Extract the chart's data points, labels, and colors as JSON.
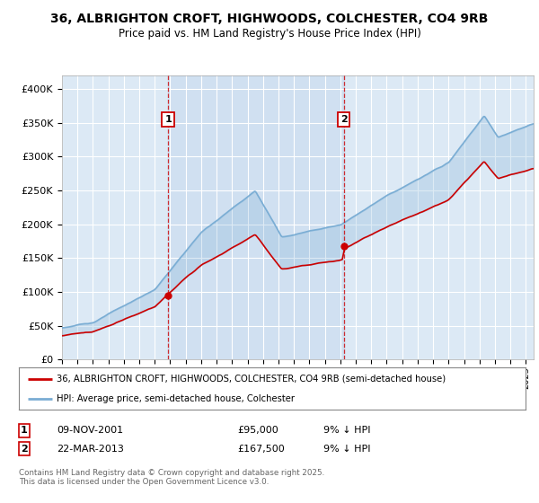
{
  "title": "36, ALBRIGHTON CROFT, HIGHWOODS, COLCHESTER, CO4 9RB",
  "subtitle": "Price paid vs. HM Land Registry's House Price Index (HPI)",
  "ylim": [
    0,
    420000
  ],
  "xlim_start": 1995,
  "xlim_end": 2025.5,
  "fig_bg": "#ffffff",
  "plot_bg": "#dce9f5",
  "grid_color": "#ffffff",
  "shade_color": "#c5d8ee",
  "line1_color": "#cc0000",
  "line2_color": "#7aadd4",
  "t1x": 2001.86,
  "t1y": 95000,
  "t2x": 2013.22,
  "t2y": 167500,
  "legend1": "36, ALBRIGHTON CROFT, HIGHWOODS, COLCHESTER, CO4 9RB (semi-detached house)",
  "legend2": "HPI: Average price, semi-detached house, Colchester",
  "footnote": "Contains HM Land Registry data © Crown copyright and database right 2025.\nThis data is licensed under the Open Government Licence v3.0.",
  "table_row1": [
    "1",
    "09-NOV-2001",
    "£95,000",
    "9% ↓ HPI"
  ],
  "table_row2": [
    "2",
    "22-MAR-2013",
    "£167,500",
    "9% ↓ HPI"
  ]
}
